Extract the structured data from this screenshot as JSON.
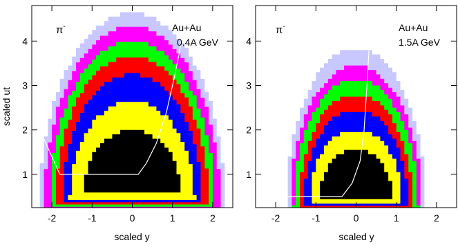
{
  "chart_data": [
    {
      "type": "heatmap",
      "particle": "π",
      "particle_charge": "-",
      "system": "Au+Au",
      "energy": "0.4A GeV",
      "xlabel": "scaled y",
      "ylabel": "scaled ut",
      "xlim": [
        -2.5,
        2.5
      ],
      "ylim": [
        0.25,
        4.8
      ],
      "xticks": [
        -2,
        -1,
        0,
        1,
        2
      ],
      "yticks": [
        1,
        2,
        3,
        4
      ],
      "levels": [
        {
          "color": "#c8c8ff",
          "ut_max": 4.58,
          "half_width": 2.32,
          "base": 0.15
        },
        {
          "color": "#ff00ff",
          "ut_max": 4.3,
          "half_width": 2.2,
          "base": 0.22
        },
        {
          "color": "#00ff00",
          "ut_max": 3.95,
          "half_width": 2.05,
          "base": 0.28
        },
        {
          "color": "#ff0000",
          "ut_max": 3.6,
          "half_width": 1.9,
          "base": 0.33
        },
        {
          "color": "#0000ff",
          "ut_max": 3.2,
          "half_width": 1.73,
          "base": 0.38
        },
        {
          "color": "#ffff00",
          "ut_max": 2.6,
          "half_width": 1.55,
          "base": 0.43
        },
        {
          "color": "#000000",
          "ut_max": 1.95,
          "half_width": 1.2,
          "base": 0.6
        }
      ],
      "boundary_line": [
        [
          -2.3,
          2.0
        ],
        [
          -1.8,
          1.0
        ],
        [
          0.15,
          1.0
        ],
        [
          0.35,
          1.25
        ],
        [
          0.6,
          1.7
        ],
        [
          0.85,
          2.4
        ],
        [
          1.05,
          3.2
        ],
        [
          1.25,
          4.1
        ]
      ]
    },
    {
      "type": "heatmap",
      "particle": "π",
      "particle_charge": "-",
      "system": "Au+Au",
      "energy": "1.5A GeV",
      "xlabel": "scaled y",
      "ylabel": "",
      "xlim": [
        -2.5,
        2.5
      ],
      "ylim": [
        0.25,
        4.8
      ],
      "xticks": [
        -2,
        -1,
        0,
        1,
        2
      ],
      "yticks": [
        1,
        2,
        3,
        4
      ],
      "levels": [
        {
          "color": "#c8c8ff",
          "ut_max": 3.8,
          "half_width": 1.75,
          "base": 0.1
        },
        {
          "color": "#ff00ff",
          "ut_max": 3.4,
          "half_width": 1.65,
          "base": 0.15
        },
        {
          "color": "#00ff00",
          "ut_max": 3.1,
          "half_width": 1.55,
          "base": 0.2
        },
        {
          "color": "#ff0000",
          "ut_max": 2.75,
          "half_width": 1.42,
          "base": 0.25
        },
        {
          "color": "#0000ff",
          "ut_max": 2.4,
          "half_width": 1.3,
          "base": 0.3
        },
        {
          "color": "#ffff00",
          "ut_max": 1.95,
          "half_width": 1.15,
          "base": 0.35
        },
        {
          "color": "#000000",
          "ut_max": 1.5,
          "half_width": 0.9,
          "base": 0.45
        }
      ],
      "boundary_line": [
        [
          -1.8,
          0.5
        ],
        [
          -0.35,
          0.5
        ],
        [
          -0.1,
          0.8
        ],
        [
          0.1,
          1.3
        ],
        [
          0.2,
          2.0
        ],
        [
          0.27,
          3.0
        ],
        [
          0.32,
          3.8
        ]
      ]
    }
  ]
}
